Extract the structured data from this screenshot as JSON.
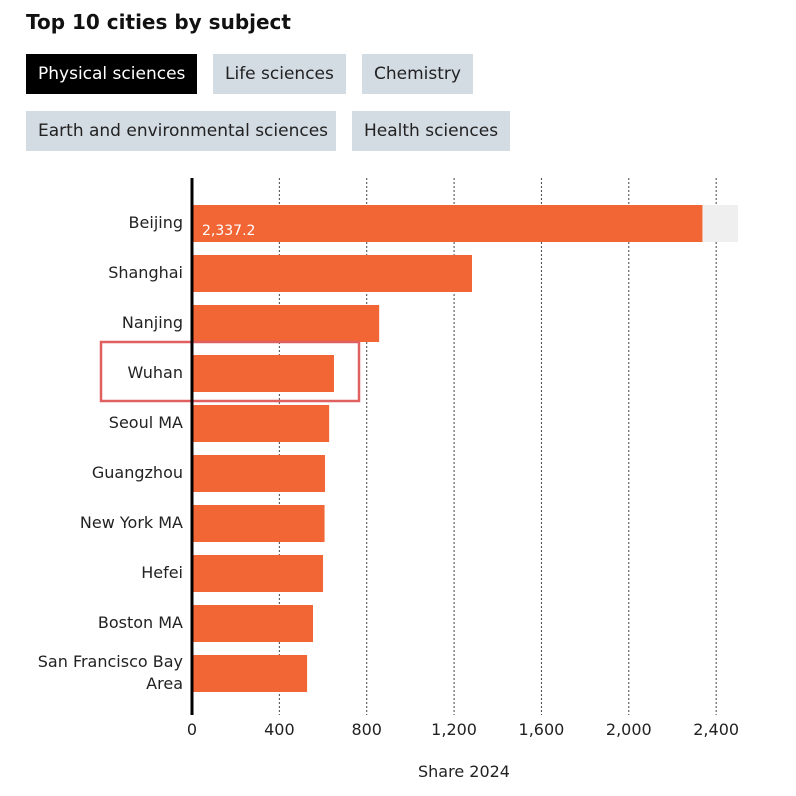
{
  "title": "Top 10 cities by subject",
  "tabs": [
    "Physical sciences",
    "Life sciences",
    "Chemistry",
    "Earth and environmental sciences",
    "Health sciences"
  ],
  "chart_data": {
    "type": "bar",
    "orientation": "horizontal",
    "categories": [
      "Beijing",
      "Shanghai",
      "Nanjing",
      "Wuhan",
      "Seoul MA",
      "Guangzhou",
      "New York MA",
      "Hefei",
      "Boston MA",
      "San Francisco Bay Area"
    ],
    "values": [
      2337.2,
      1282,
      857,
      650,
      628,
      609,
      607,
      600,
      554,
      527
    ],
    "value_labels": [
      "2,337.2",
      null,
      null,
      null,
      null,
      null,
      null,
      null,
      null,
      null
    ],
    "color": "#f26535",
    "xlim": [
      0,
      2500
    ],
    "xticks": [
      0,
      400,
      800,
      {
        "value": 1200,
        "label": "1,200"
      },
      {
        "value": 1600,
        "label": "1,600"
      },
      {
        "value": 2000,
        "label": "2,000"
      },
      {
        "value": 2400,
        "label": "2,400"
      }
    ],
    "xlabel": "Share 2024",
    "grid": true
  }
}
